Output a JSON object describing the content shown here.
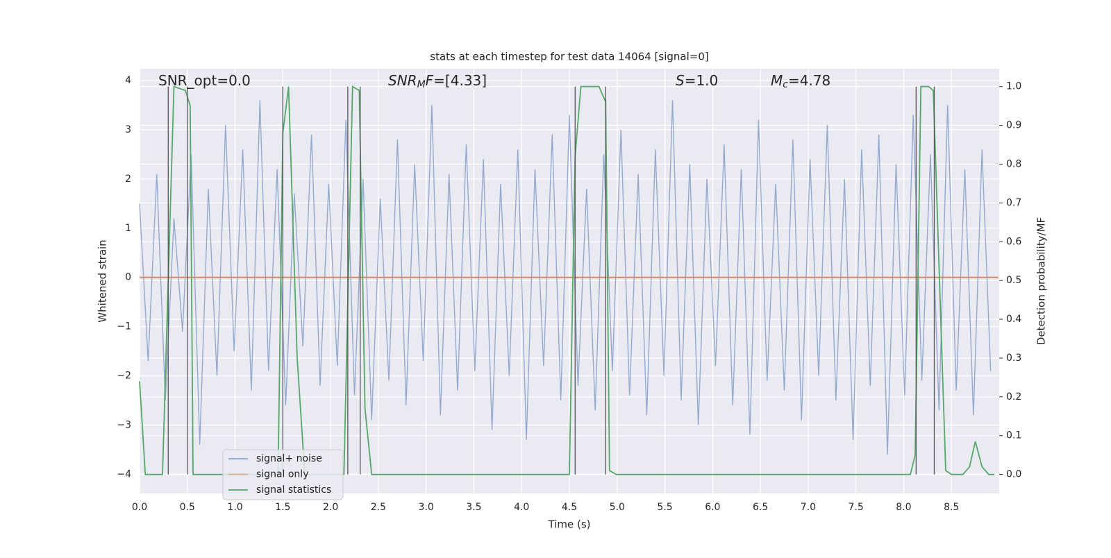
{
  "chart_data": {
    "type": "line",
    "title": "stats at each timestep for test data 14064 [signal=0]",
    "xlabel": "Time (s)",
    "ylabel": "Whitened strain",
    "y2label": "Detection probability/MF",
    "xlim": [
      0,
      9.0
    ],
    "ylim": [
      -4.39,
      4.24
    ],
    "y2lim": [
      -0.049,
      1.046
    ],
    "xticks": [
      {
        "value": 0,
        "label": "0.0"
      },
      0.5,
      {
        "value": 1,
        "label": "1.0"
      },
      1.5,
      {
        "value": 2,
        "label": "2.0"
      },
      2.5,
      {
        "value": 3,
        "label": "3.0"
      },
      3.5,
      {
        "value": 4,
        "label": "4.0"
      },
      4.5,
      {
        "value": 5,
        "label": "5.0"
      },
      5.5,
      {
        "value": 6,
        "label": "6.0"
      },
      6.5,
      {
        "value": 7,
        "label": "7.0"
      },
      7.5,
      {
        "value": 8,
        "label": "8.0"
      },
      8.5
    ],
    "yticks": [
      {
        "value": -4,
        "label": "−4"
      },
      {
        "value": -3,
        "label": "−3"
      },
      {
        "value": -2,
        "label": "−2"
      },
      {
        "value": -1,
        "label": "−1"
      },
      0,
      1,
      2,
      3,
      4
    ],
    "y2ticks": [
      {
        "value": 0,
        "label": "0.0"
      },
      0.1,
      0.2,
      0.3,
      0.4,
      0.5,
      0.6,
      0.7,
      0.8,
      0.9,
      {
        "value": 1,
        "label": "1.0"
      }
    ],
    "grid": true,
    "legend": "lower left",
    "series": [
      {
        "name": "signal+ noise",
        "color": "#4c72b0",
        "x": [
          0,
          0.09,
          0.18,
          0.27,
          0.36,
          0.45,
          0.54,
          0.63,
          0.72,
          0.81,
          0.9,
          0.99,
          1.08,
          1.17,
          1.26,
          1.35,
          1.44,
          1.53,
          1.62,
          1.71,
          1.8,
          1.89,
          1.98,
          2.07,
          2.16,
          2.25,
          2.34,
          2.43,
          2.52,
          2.61,
          2.7,
          2.79,
          2.88,
          2.97,
          3.06,
          3.15,
          3.24,
          3.33,
          3.42,
          3.51,
          3.6,
          3.69,
          3.78,
          3.87,
          3.96,
          4.05,
          4.14,
          4.23,
          4.32,
          4.41,
          4.5,
          4.59,
          4.68,
          4.77,
          4.86,
          4.95,
          5.04,
          5.13,
          5.22,
          5.31,
          5.4,
          5.49,
          5.58,
          5.67,
          5.76,
          5.85,
          5.94,
          6.03,
          6.12,
          6.21,
          6.3,
          6.39,
          6.48,
          6.57,
          6.66,
          6.75,
          6.84,
          6.93,
          7.02,
          7.11,
          7.2,
          7.29,
          7.38,
          7.47,
          7.56,
          7.65,
          7.74,
          7.83,
          7.92,
          8.01,
          8.1,
          8.19,
          8.28,
          8.37,
          8.46,
          8.55,
          8.64,
          8.73,
          8.82,
          8.91
        ],
        "values": [
          1.5,
          -1.7,
          2.1,
          -2.5,
          1.2,
          -1.1,
          2.5,
          -3.4,
          1.8,
          -2.0,
          3.1,
          -1.5,
          2.6,
          -2.3,
          3.6,
          -1.9,
          2.2,
          -2.6,
          1.7,
          -1.4,
          2.9,
          -2.2,
          1.9,
          -1.8,
          3.2,
          -2.4,
          2.0,
          -2.9,
          1.6,
          -2.1,
          2.8,
          -2.6,
          2.3,
          -1.7,
          3.5,
          -2.8,
          2.1,
          -2.3,
          2.7,
          -1.9,
          2.4,
          -3.1,
          1.9,
          -2.0,
          2.6,
          -3.3,
          2.2,
          -1.8,
          2.9,
          -2.5,
          3.3,
          -2.2,
          1.8,
          -2.7,
          2.5,
          -1.9,
          3.0,
          -2.4,
          2.1,
          -2.8,
          2.6,
          -2.0,
          3.6,
          -2.5,
          2.3,
          -3.0,
          2.0,
          -1.8,
          2.7,
          -2.6,
          2.2,
          -3.2,
          3.2,
          -2.1,
          1.9,
          -2.3,
          2.8,
          -2.9,
          2.4,
          -2.0,
          3.1,
          -2.5,
          2.0,
          -3.3,
          2.6,
          -2.2,
          2.9,
          -3.6,
          2.3,
          -2.4,
          3.3,
          -2.1,
          2.5,
          -2.7,
          3.5,
          -2.3,
          2.2,
          -2.8,
          2.6,
          -1.9
        ]
      },
      {
        "name": "signal only",
        "color": "#dd8452",
        "x": [
          0,
          8.99
        ],
        "values": [
          0,
          0
        ]
      },
      {
        "name": "signal statistics",
        "color": "#55a868",
        "axis": "y2",
        "x": [
          0,
          0.06,
          0.24,
          0.36,
          0.48,
          0.53,
          0.56,
          0.62,
          1.45,
          1.5,
          1.56,
          1.65,
          1.73,
          2.14,
          2.23,
          2.3,
          2.36,
          2.43,
          4.5,
          4.56,
          4.62,
          4.81,
          4.88,
          4.92,
          4.99,
          8.07,
          8.12,
          8.18,
          8.26,
          8.31,
          8.44,
          8.5,
          8.62,
          8.69,
          8.75,
          8.82,
          8.89,
          8.95
        ],
        "values": [
          0.24,
          0.0,
          0.0,
          1.0,
          0.99,
          0.95,
          0.0,
          0.0,
          0.0,
          0.88,
          1.0,
          0.3,
          0.0,
          0.0,
          1.0,
          0.99,
          0.17,
          0.0,
          0.0,
          0.82,
          1.0,
          1.0,
          0.96,
          0.01,
          0.0,
          0.0,
          0.05,
          1.0,
          1.0,
          0.99,
          0.01,
          0.0,
          0.0,
          0.02,
          0.085,
          0.02,
          0.0,
          0.0
        ]
      }
    ],
    "vlines": {
      "x": [
        0.3,
        0.5,
        1.5,
        2.18,
        2.31,
        4.56,
        4.88,
        8.13,
        8.32
      ],
      "ymin": 0.0,
      "ymax": 1.0,
      "axis": "y2",
      "color": "#555555"
    },
    "annotations": [
      {
        "parts": [
          {
            "text": "SNR_opt=0.0"
          }
        ]
      },
      {
        "parts": [
          {
            "text": "SNR",
            "style": "italic"
          },
          {
            "text": "M",
            "style": "italic-sub"
          },
          {
            "text": "F",
            "style": "italic"
          },
          {
            "text": "=[4.33]"
          }
        ]
      },
      {
        "parts": [
          {
            "text": "S",
            "style": "italic"
          },
          {
            "text": "=1.0"
          }
        ]
      },
      {
        "parts": [
          {
            "text": "M",
            "style": "italic"
          },
          {
            "text": "c",
            "style": "italic-sub"
          },
          {
            "text": "=4.78"
          }
        ]
      }
    ]
  }
}
